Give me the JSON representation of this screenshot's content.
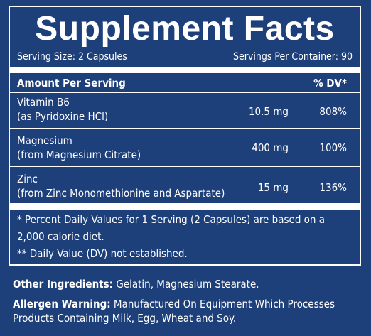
{
  "title": "Supplement Facts",
  "serving": {
    "size": "Serving Size: 2 Capsules",
    "per_container": "Servings Per Container: 90"
  },
  "header": {
    "amount": "Amount Per Serving",
    "dv": "% DV*"
  },
  "nutrients": [
    {
      "name": "Vitamin B6",
      "source": "(as Pyridoxine HCl)",
      "amount": "10.5 mg",
      "dv": "808%"
    },
    {
      "name": "Magnesium",
      "source": "(from Magnesium Citrate)",
      "amount": "400 mg",
      "dv": "100%"
    },
    {
      "name": "Zinc",
      "source": "(from Zinc Monomethionine and Aspartate)",
      "amount": "15 mg",
      "dv": "136%"
    }
  ],
  "footnotes": {
    "line1": "* Percent Daily Values for 1 Serving (2 Capsules) are based on a",
    "line2": "2,000 calorie diet.",
    "line3": "** Daily Value (DV) not established."
  },
  "other_ingredients": {
    "label": "Other Ingredients:",
    "text": " Gelatin, Magnesium Stearate."
  },
  "allergen": {
    "label": "Allergen Warning:",
    "text1": " Manufactured On Equipment Which Processes",
    "text2": "Products Containing Milk, Egg, Wheat and Soy."
  }
}
